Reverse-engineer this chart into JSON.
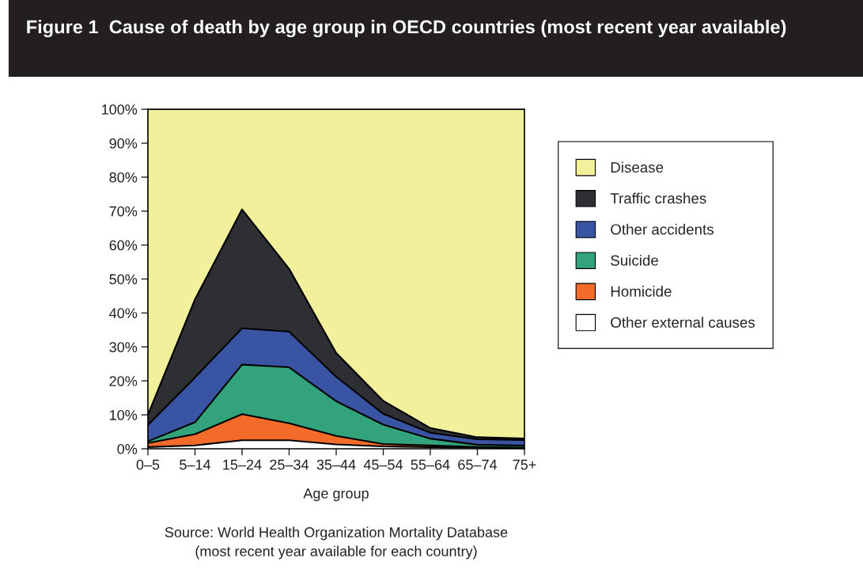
{
  "chart_data": {
    "type": "area",
    "stacked": true,
    "title": "Figure 1  Cause of death by age group in OECD countries (most recent year available)",
    "xlabel": "Age group",
    "categories": [
      "0–5",
      "5–14",
      "15–24",
      "25–34",
      "35–44",
      "45–54",
      "55–64",
      "65–74",
      "75+"
    ],
    "series": [
      {
        "name": "Other external causes",
        "color": "#ffffff",
        "values": [
          0.5,
          1,
          2.5,
          2.5,
          1.3,
          0.7,
          0.5,
          0.3,
          0.2
        ]
      },
      {
        "name": "Homicide",
        "color": "#f26b2a",
        "values": [
          1.2,
          3.3,
          7.7,
          5,
          2.5,
          0.7,
          0.5,
          0.2,
          0.1
        ]
      },
      {
        "name": "Suicide",
        "color": "#32a37a",
        "values": [
          0.5,
          3.5,
          14.6,
          16.5,
          10.2,
          5.7,
          2,
          0.7,
          0.6
        ]
      },
      {
        "name": "Other accidents",
        "color": "#3a54a4",
        "values": [
          4.8,
          13.2,
          10.7,
          10.5,
          7.2,
          3.2,
          1.7,
          1.6,
          1.7
        ]
      },
      {
        "name": "Traffic crashes",
        "color": "#2e2f33",
        "values": [
          3,
          23,
          35,
          18.5,
          7,
          3.8,
          1.4,
          0.6,
          0.4
        ]
      },
      {
        "name": "Disease",
        "color": "#f3f09c",
        "values": [
          90,
          56,
          29.5,
          47,
          71.8,
          85.9,
          93.9,
          96.6,
          97
        ]
      }
    ],
    "ylim": [
      0,
      100
    ],
    "yticks": [
      {
        "value": 0,
        "label": "0%"
      },
      {
        "value": 10,
        "label": "10%"
      },
      {
        "value": 20,
        "label": "20%"
      },
      {
        "value": 30,
        "label": "30%"
      },
      {
        "value": 40,
        "label": "40%"
      },
      {
        "value": 50,
        "label": "50%"
      },
      {
        "value": 60,
        "label": "60%"
      },
      {
        "value": 70,
        "label": "70%"
      },
      {
        "value": 80,
        "label": "80%"
      },
      {
        "value": 90,
        "label": "90%"
      },
      {
        "value": 100,
        "label": "100%"
      }
    ],
    "legend": "right",
    "annotations": [
      "Source: World Health Organization Mortality Database",
      "(most recent year available for each country)"
    ]
  }
}
